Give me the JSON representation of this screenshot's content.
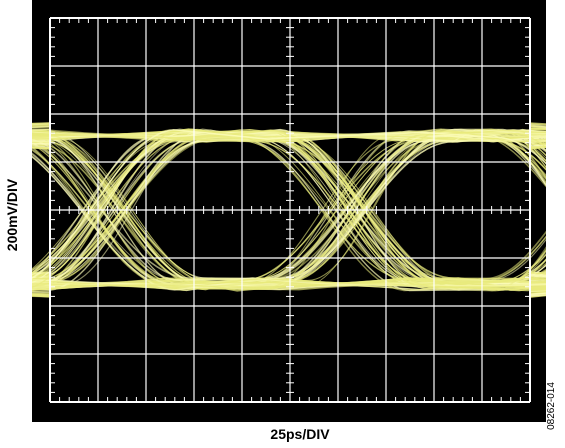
{
  "chart_data": {
    "type": "eye-diagram",
    "title": "",
    "xlabel": "25ps/DIV",
    "ylabel": "200mV/DIV",
    "divisions": {
      "x": 10,
      "y": 8
    },
    "xlim_div": [
      0,
      10
    ],
    "ylim_div": [
      -4,
      4
    ],
    "grid": true,
    "eye": {
      "high_level_div": 1.55,
      "low_level_div": -1.55,
      "crossings_div": [
        1.2,
        6.2
      ],
      "unit_interval_div": 5.0
    },
    "colors": {
      "screen": "#000000",
      "grid": "#ffffff",
      "trace": "#e8ea7c",
      "trace_core": "#fbfbb8"
    }
  },
  "figure_id": "08262-014"
}
